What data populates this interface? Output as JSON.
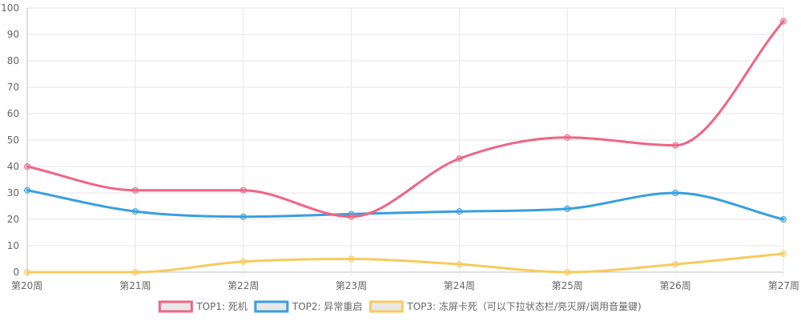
{
  "chart_data": {
    "type": "line",
    "title": "",
    "xlabel": "",
    "ylabel": "",
    "categories": [
      "第20周",
      "第21周",
      "第22周",
      "第23周",
      "第24周",
      "第25周",
      "第26周",
      "第27周"
    ],
    "ylim": [
      0,
      100
    ],
    "yticks": [
      0,
      10,
      20,
      30,
      40,
      50,
      60,
      70,
      80,
      90,
      100
    ],
    "grid": true,
    "legend_position": "bottom",
    "series": [
      {
        "name": "TOP1: 死机",
        "color": "#f06485",
        "values": [
          40,
          31,
          31,
          21,
          43,
          51,
          48,
          95
        ]
      },
      {
        "name": "TOP2: 异常重启",
        "color": "#379fe0",
        "values": [
          31,
          23,
          21,
          22,
          23,
          24,
          30,
          20
        ]
      },
      {
        "name": "TOP3: 冻屏卡死（可以下拉状态栏/亮灭屏/调用音量键)",
        "color": "#f7cb5c",
        "values": [
          0,
          0,
          4,
          5,
          3,
          0,
          3,
          7
        ]
      }
    ]
  }
}
